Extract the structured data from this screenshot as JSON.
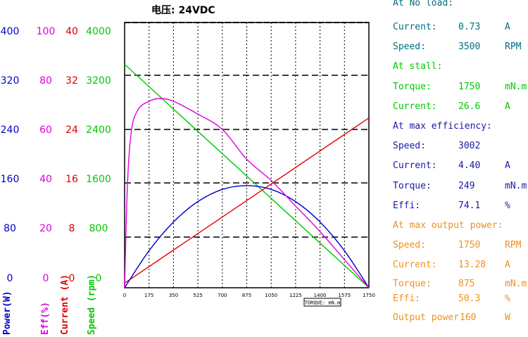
{
  "colors": {
    "power": "#0000c8",
    "eff": "#e000e0",
    "current": "#e00000",
    "speed": "#00c800",
    "teal": "#006f7f",
    "navy": "#1a1aa6",
    "orange": "#f09020"
  },
  "chart_data": {
    "type": "line",
    "title": "电压:  24VDC",
    "x_axis": {
      "label": "TORQUE: mN.m",
      "ticks": [
        "0",
        "175",
        "350",
        "525",
        "700",
        "875",
        "1050",
        "1225",
        "1400",
        "1575",
        "1750"
      ],
      "range": [
        0,
        1750
      ]
    },
    "y_axes": [
      {
        "key": "power",
        "label": "Power(W)",
        "ticks": [
          "400",
          "320",
          "240",
          "160",
          "80",
          "0"
        ],
        "range": [
          0,
          400
        ]
      },
      {
        "key": "eff",
        "label": "Eff(%)",
        "ticks": [
          "100",
          "80",
          "60",
          "40",
          "20",
          "0"
        ],
        "range": [
          0,
          100
        ]
      },
      {
        "key": "current",
        "label": "Current (A)",
        "ticks": [
          "40",
          "32",
          "24",
          "16",
          "8",
          "0"
        ],
        "range": [
          0,
          40
        ]
      },
      {
        "key": "speed",
        "label": "Speed (rpm)",
        "ticks": [
          "4000",
          "3200",
          "2400",
          "1600",
          "800",
          "0"
        ],
        "range": [
          0,
          4000
        ]
      }
    ],
    "series": [
      {
        "key": "speed",
        "points": [
          [
            0,
            3500
          ],
          [
            1750,
            0
          ]
        ]
      },
      {
        "key": "current",
        "points": [
          [
            0,
            0.73
          ],
          [
            1750,
            26.6
          ]
        ]
      },
      {
        "key": "power",
        "points": [
          [
            0,
            0
          ],
          [
            175,
            58
          ],
          [
            350,
            103
          ],
          [
            525,
            135
          ],
          [
            700,
            154
          ],
          [
            875,
            160
          ],
          [
            1050,
            154
          ],
          [
            1225,
            135
          ],
          [
            1400,
            103
          ],
          [
            1575,
            58
          ],
          [
            1750,
            0
          ]
        ]
      },
      {
        "key": "eff",
        "points": [
          [
            0,
            0
          ],
          [
            20,
            40
          ],
          [
            50,
            62
          ],
          [
            100,
            70
          ],
          [
            175,
            73
          ],
          [
            250,
            74.1
          ],
          [
            350,
            73
          ],
          [
            525,
            68
          ],
          [
            700,
            62
          ],
          [
            875,
            50.3
          ],
          [
            1050,
            42
          ],
          [
            1225,
            32
          ],
          [
            1400,
            22
          ],
          [
            1575,
            11
          ],
          [
            1750,
            0
          ]
        ]
      }
    ]
  },
  "info": {
    "no_load": {
      "heading": "At No load:",
      "current_label": "Current:",
      "current_value": "0.73",
      "current_unit": "A",
      "speed_label": "Speed:",
      "speed_value": "3500",
      "speed_unit": "RPM"
    },
    "stall": {
      "heading": "At stall:",
      "torque_label": "Torque:",
      "torque_value": "1750",
      "torque_unit": "mN.m",
      "current_label": "Current:",
      "current_value": "26.6",
      "current_unit": "A"
    },
    "max_eff": {
      "heading": "At max efficiency:",
      "speed_label": "Speed:",
      "speed_value": "3002",
      "current_label": "Current:",
      "current_value": "4.40",
      "current_unit": "A",
      "torque_label": "Torque:",
      "torque_value": "249",
      "torque_unit": "mN.m",
      "effi_label": "Effi:",
      "effi_value": "74.1",
      "effi_unit": "%"
    },
    "max_power": {
      "heading": "At max output power:",
      "speed_label": "Speed:",
      "speed_value": "1750",
      "speed_unit": "RPM",
      "current_label": "Current:",
      "current_value": "13.28",
      "current_unit": "A",
      "torque_label": "Torque:",
      "torque_value": "875",
      "torque_unit": "mN.m",
      "effi_label": "Effi:",
      "effi_value": "50.3",
      "effi_unit": "%",
      "output_label": "Output power",
      "output_value": "160",
      "output_unit": "W"
    }
  }
}
